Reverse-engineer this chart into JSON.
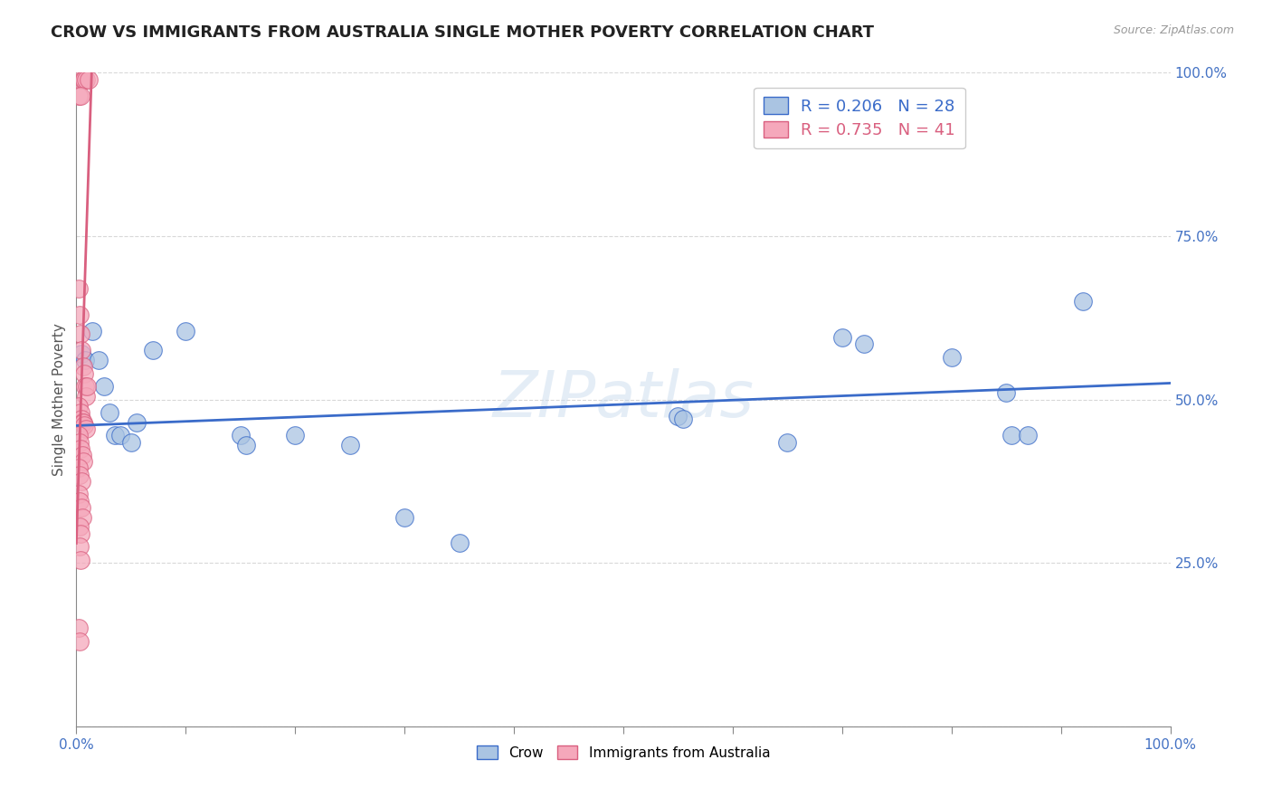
{
  "title": "CROW VS IMMIGRANTS FROM AUSTRALIA SINGLE MOTHER POVERTY CORRELATION CHART",
  "source": "Source: ZipAtlas.com",
  "ylabel": "Single Mother Poverty",
  "crow_R": 0.206,
  "crow_N": 28,
  "immigrants_R": 0.735,
  "immigrants_N": 41,
  "legend_label_1": "Crow",
  "legend_label_2": "Immigrants from Australia",
  "watermark": "ZIPatlas",
  "crow_color": "#aac4e2",
  "immigrants_color": "#f5a8bb",
  "crow_line_color": "#3a6bc9",
  "immigrants_line_color": "#d95f7f",
  "crow_scatter": [
    [
      0.5,
      57.0
    ],
    [
      0.8,
      56.0
    ],
    [
      1.5,
      60.5
    ],
    [
      2.0,
      56.0
    ],
    [
      2.5,
      52.0
    ],
    [
      3.0,
      48.0
    ],
    [
      3.5,
      44.5
    ],
    [
      4.0,
      44.5
    ],
    [
      5.0,
      43.5
    ],
    [
      5.5,
      46.5
    ],
    [
      7.0,
      57.5
    ],
    [
      10.0,
      60.5
    ],
    [
      15.0,
      44.5
    ],
    [
      15.5,
      43.0
    ],
    [
      20.0,
      44.5
    ],
    [
      25.0,
      43.0
    ],
    [
      30.0,
      32.0
    ],
    [
      35.0,
      28.0
    ],
    [
      55.0,
      47.5
    ],
    [
      55.5,
      47.0
    ],
    [
      65.0,
      43.5
    ],
    [
      70.0,
      59.5
    ],
    [
      72.0,
      58.5
    ],
    [
      80.0,
      56.5
    ],
    [
      85.0,
      51.0
    ],
    [
      85.5,
      44.5
    ],
    [
      87.0,
      44.5
    ],
    [
      92.0,
      65.0
    ]
  ],
  "immigrants_scatter": [
    [
      0.3,
      99.0
    ],
    [
      0.6,
      99.0
    ],
    [
      0.7,
      99.0
    ],
    [
      0.9,
      99.0
    ],
    [
      1.1,
      99.0
    ],
    [
      0.2,
      96.5
    ],
    [
      0.4,
      96.5
    ],
    [
      0.2,
      67.0
    ],
    [
      0.3,
      63.0
    ],
    [
      0.4,
      60.0
    ],
    [
      0.5,
      57.5
    ],
    [
      0.6,
      55.0
    ],
    [
      0.7,
      54.0
    ],
    [
      0.8,
      52.0
    ],
    [
      0.9,
      50.5
    ],
    [
      1.0,
      52.0
    ],
    [
      0.25,
      49.0
    ],
    [
      0.35,
      48.0
    ],
    [
      0.45,
      47.0
    ],
    [
      0.55,
      46.5
    ],
    [
      0.65,
      46.5
    ],
    [
      0.75,
      46.0
    ],
    [
      0.85,
      45.5
    ],
    [
      0.22,
      44.5
    ],
    [
      0.32,
      43.5
    ],
    [
      0.42,
      42.5
    ],
    [
      0.52,
      41.5
    ],
    [
      0.62,
      40.5
    ],
    [
      0.23,
      39.5
    ],
    [
      0.33,
      38.5
    ],
    [
      0.43,
      37.5
    ],
    [
      0.24,
      35.5
    ],
    [
      0.34,
      34.5
    ],
    [
      0.44,
      33.5
    ],
    [
      0.54,
      32.0
    ],
    [
      0.26,
      30.5
    ],
    [
      0.36,
      29.5
    ],
    [
      0.28,
      27.5
    ],
    [
      0.38,
      25.5
    ],
    [
      0.21,
      15.0
    ],
    [
      0.31,
      13.0
    ]
  ],
  "crow_line": [
    0.0,
    100.0,
    46.0,
    52.5
  ],
  "immigrants_line": [
    0.0,
    1.4,
    28.0,
    100.0
  ],
  "xlim": [
    0,
    100
  ],
  "ylim": [
    0,
    100
  ],
  "x_major_ticks": [
    0,
    10,
    20,
    30,
    40,
    50,
    60,
    70,
    80,
    90,
    100
  ],
  "y_major_ticks": [
    0,
    25,
    50,
    75,
    100
  ],
  "x_label_ticks": [
    0,
    100
  ],
  "background_color": "#ffffff",
  "grid_color": "#d8d8d8",
  "axis_color": "#888888",
  "tick_label_color": "#4472c4",
  "title_color": "#222222",
  "source_color": "#999999",
  "ylabel_color": "#555555"
}
